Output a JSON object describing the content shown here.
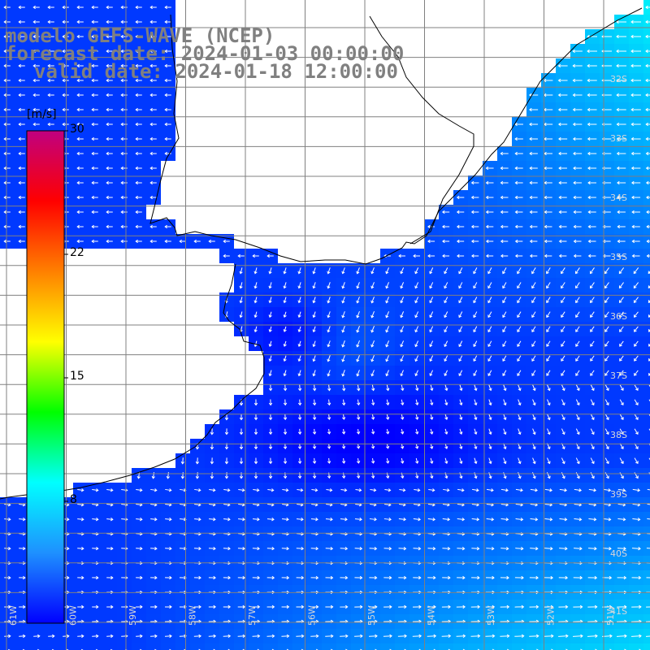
{
  "title": {
    "line1": "modelo GEFS-WAVE (NCEP)",
    "line2": "forecast date: 2024-01-03 00:00:00",
    "line3": "valid date: 2024-01-18 12:00:00"
  },
  "colorbar": {
    "unit": "[m/s]",
    "ticks": [
      "30",
      "22",
      "15",
      "8"
    ],
    "min": 0,
    "max": 30,
    "colors": [
      "#0000ff",
      "#1e90ff",
      "#00ffff",
      "#00ff00",
      "#ffff00",
      "#ff8000",
      "#ff0000",
      "#c00080"
    ]
  },
  "map": {
    "lat_labels": [
      "32S",
      "33S",
      "34S",
      "35S",
      "36S",
      "37S",
      "38S",
      "39S",
      "40S",
      "41S"
    ],
    "lon_labels": [
      "61W",
      "60W",
      "59W",
      "58W",
      "57W",
      "56W",
      "55W",
      "54W",
      "53W",
      "52W",
      "51W"
    ],
    "field": "wind speed",
    "colors": {
      "land": "#ffffff",
      "coast": "#000000",
      "grid": "#808080",
      "arrow": "#ffffff"
    }
  }
}
